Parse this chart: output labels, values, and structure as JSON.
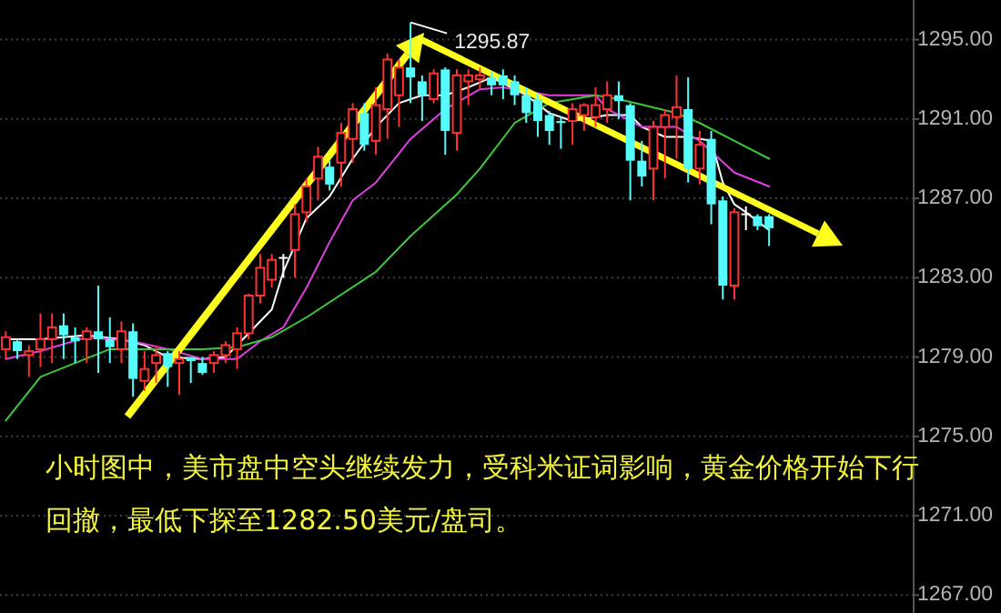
{
  "chart_data": {
    "type": "candlestick",
    "categories": [
      null,
      null,
      null,
      null,
      null,
      null,
      null,
      null,
      null,
      null,
      null,
      null,
      null,
      null,
      null,
      null,
      null,
      null,
      null,
      null,
      null,
      null,
      null,
      null,
      null,
      null,
      null,
      null,
      null,
      null,
      null,
      null,
      null,
      null,
      null,
      null,
      null,
      null,
      null,
      null,
      null,
      null,
      null,
      null,
      null,
      null,
      null,
      null,
      null,
      null,
      null,
      null,
      null,
      null,
      null,
      null,
      null,
      null,
      null,
      null,
      null,
      null,
      null,
      null,
      null,
      null,
      null,
      null,
      null,
      null,
      null,
      null,
      null,
      null,
      null,
      null,
      null,
      null,
      null
    ],
    "ohlc": [
      [
        1279.4,
        1280.3,
        1278.9,
        1280.0
      ],
      [
        1279.8,
        1279.9,
        1278.9,
        1279.3
      ],
      [
        1279.1,
        1279.6,
        1278.0,
        1279.3
      ],
      [
        1279.4,
        1281.2,
        1278.5,
        1279.9
      ],
      [
        1279.9,
        1281.2,
        1278.7,
        1280.5
      ],
      [
        1280.6,
        1281.2,
        1278.9,
        1280.1
      ],
      [
        1280.0,
        1280.5,
        1278.7,
        1279.8
      ],
      [
        1279.9,
        1280.5,
        1278.7,
        1280.3
      ],
      [
        1280.3,
        1282.6,
        1278.2,
        1279.9
      ],
      [
        1279.9,
        1281.0,
        1278.7,
        1279.5
      ],
      [
        1279.4,
        1280.8,
        1278.7,
        1280.3
      ],
      [
        1280.3,
        1280.7,
        1277.0,
        1277.9
      ],
      [
        1277.8,
        1279.3,
        1277.3,
        1278.4
      ],
      [
        1278.7,
        1279.6,
        1277.7,
        1279.1
      ],
      [
        1279.2,
        1279.3,
        1277.5,
        1278.5
      ],
      [
        1278.7,
        1279.3,
        1277.1,
        1278.9
      ],
      [
        1279.0,
        1279.0,
        1277.7,
        1278.8
      ],
      [
        1278.7,
        1279.0,
        1278.1,
        1278.2
      ],
      [
        1278.7,
        1279.3,
        1278.2,
        1279.1
      ],
      [
        1279.1,
        1279.8,
        1278.7,
        1279.6
      ],
      [
        1279.4,
        1280.5,
        1278.4,
        1280.2
      ],
      [
        1280.2,
        1282.2,
        1279.9,
        1282.1
      ],
      [
        1282.1,
        1284.2,
        1281.7,
        1283.5
      ],
      [
        1282.9,
        1284.2,
        1282.5,
        1283.9
      ],
      [
        1284.0,
        1284.2,
        1283.0,
        1284.0
      ],
      [
        1284.4,
        1286.7,
        1283.0,
        1286.2
      ],
      [
        1286.3,
        1288.0,
        1285.8,
        1287.6
      ],
      [
        1288.0,
        1289.6,
        1286.9,
        1289.1
      ],
      [
        1288.6,
        1288.9,
        1287.4,
        1287.7
      ],
      [
        1288.8,
        1290.8,
        1287.6,
        1290.3
      ],
      [
        1290.0,
        1291.8,
        1288.8,
        1291.5
      ],
      [
        1291.3,
        1291.8,
        1289.4,
        1289.7
      ],
      [
        1289.9,
        1292.6,
        1289.2,
        1291.7
      ],
      [
        1291.5,
        1294.3,
        1290.0,
        1294.0
      ],
      [
        1292.2,
        1294.0,
        1290.6,
        1293.6
      ],
      [
        1293.6,
        1295.87,
        1291.8,
        1293.1
      ],
      [
        1292.9,
        1293.2,
        1290.9,
        1292.2
      ],
      [
        1292.0,
        1293.5,
        1291.8,
        1293.3
      ],
      [
        1293.5,
        1293.6,
        1289.2,
        1290.4
      ],
      [
        1290.3,
        1293.5,
        1289.4,
        1293.2
      ],
      [
        1292.9,
        1293.5,
        1291.7,
        1293.2
      ],
      [
        1293.0,
        1293.6,
        1292.5,
        1293.2
      ],
      [
        1293.1,
        1293.4,
        1292.2,
        1292.7
      ],
      [
        1293.2,
        1293.5,
        1292.0,
        1292.7
      ],
      [
        1292.9,
        1293.2,
        1291.7,
        1292.2
      ],
      [
        1292.2,
        1292.6,
        1290.8,
        1291.3
      ],
      [
        1292.0,
        1292.3,
        1290.1,
        1290.9
      ],
      [
        1291.2,
        1291.4,
        1289.7,
        1290.4
      ],
      [
        1290.9,
        1291.1,
        1289.5,
        1290.8
      ],
      [
        1290.9,
        1291.8,
        1289.7,
        1291.5
      ],
      [
        1291.2,
        1291.8,
        1290.4,
        1291.7
      ],
      [
        1291.1,
        1292.6,
        1290.6,
        1291.7
      ],
      [
        1291.5,
        1292.9,
        1290.8,
        1292.2
      ],
      [
        1292.2,
        1292.9,
        1291.0,
        1291.9
      ],
      [
        1291.7,
        1291.8,
        1286.9,
        1288.9
      ],
      [
        1288.9,
        1289.9,
        1287.6,
        1288.1
      ],
      [
        1288.5,
        1290.9,
        1286.9,
        1290.6
      ],
      [
        1290.6,
        1291.5,
        1288.0,
        1291.2
      ],
      [
        1291.1,
        1293.2,
        1289.0,
        1291.6
      ],
      [
        1291.5,
        1293.1,
        1287.8,
        1288.5
      ],
      [
        1288.5,
        1290.4,
        1287.7,
        1289.7
      ],
      [
        1290.0,
        1290.4,
        1285.7,
        1286.7
      ],
      [
        1286.9,
        1287.1,
        1281.9,
        1282.6
      ],
      [
        1282.6,
        1286.5,
        1281.9,
        1286.3
      ],
      [
        1286.2,
        1286.6,
        1285.4,
        1286.2
      ],
      [
        1286.1,
        1286.2,
        1285.4,
        1285.6
      ],
      [
        1286.1,
        1286.2,
        1284.6,
        1285.5
      ],
      null,
      null,
      null,
      null,
      null,
      null,
      null,
      null,
      null,
      null,
      null,
      null
    ],
    "colors": [
      "#ff3232",
      "#54fcfc",
      "#ff3232",
      "#ff3232",
      "#ff3232",
      "#54fcfc",
      "#54fcfc",
      "#ff3232",
      "#54fcfc",
      "#54fcfc",
      "#ff3232",
      "#54fcfc",
      "#ff3232",
      "#ff3232",
      "#54fcfc",
      "#ff3232",
      "#54fcfc",
      "#54fcfc",
      "#ff3232",
      "#ff3232",
      "#ff3232",
      "#ff3232",
      "#ff3232",
      "#ff3232",
      "#ffffff",
      "#ff3232",
      "#ff3232",
      "#ff3232",
      "#54fcfc",
      "#ff3232",
      "#ff3232",
      "#54fcfc",
      "#ff3232",
      "#ff3232",
      "#ff3232",
      "#54fcfc",
      "#54fcfc",
      "#ff3232",
      "#54fcfc",
      "#ff3232",
      "#ff3232",
      "#ff3232",
      "#54fcfc",
      "#54fcfc",
      "#54fcfc",
      "#54fcfc",
      "#54fcfc",
      "#54fcfc",
      "#54fcfc",
      "#ff3232",
      "#ff3232",
      "#ff3232",
      "#ff3232",
      "#54fcfc",
      "#54fcfc",
      "#54fcfc",
      "#ff3232",
      "#ff3232",
      "#ff3232",
      "#54fcfc",
      "#ff3232",
      "#54fcfc",
      "#54fcfc",
      "#ff3232",
      "#ffffff",
      "#54fcfc",
      "#54fcfc",
      null,
      null,
      null,
      null,
      null,
      null,
      null,
      null,
      null,
      null,
      null,
      null
    ],
    "series": [
      {
        "type": "line",
        "color": "#ffffff",
        "values": [
          1279.9,
          null,
          null,
          1279.9,
          null,
          null,
          null,
          1280.1,
          null,
          null,
          1279.9,
          null,
          1279.6,
          null,
          1279.0,
          null,
          null,
          1278.9,
          null,
          1279.0,
          1279.6,
          1280.2,
          null,
          1281.4,
          1283.3,
          null,
          1286.0,
          null,
          1287.1,
          null,
          1289.0,
          null,
          1290.6,
          null,
          1291.8,
          null,
          1292.2,
          null,
          1292.2,
          null,
          1292.6,
          null,
          1293.1,
          null,
          null,
          1292.2,
          null,
          1291.3,
          null,
          1290.9,
          null,
          1291.1,
          1291.2,
          null,
          1291.2,
          1290.6,
          null,
          1290.1,
          null,
          1290.1,
          null,
          1289.9,
          1287.8,
          1286.7,
          1286.3,
          null,
          1285.4,
          null,
          null,
          null,
          null,
          null,
          null,
          null,
          null,
          null,
          null,
          null,
          null
        ]
      },
      {
        "type": "line",
        "color": "#e040e0",
        "values": [
          1278.9,
          null,
          null,
          1279.3,
          null,
          null,
          null,
          1280.0,
          null,
          null,
          null,
          1279.8,
          null,
          null,
          1279.4,
          null,
          null,
          1278.9,
          null,
          null,
          1278.9,
          null,
          1279.8,
          null,
          1280.5,
          null,
          1282.5,
          null,
          1284.8,
          null,
          1286.9,
          null,
          1287.8,
          null,
          null,
          1290.0,
          null,
          null,
          1291.5,
          null,
          null,
          1292.5,
          null,
          1292.6,
          null,
          null,
          null,
          1292.2,
          null,
          null,
          null,
          1292.2,
          1291.5,
          null,
          null,
          1290.6,
          null,
          null,
          1290.6,
          null,
          1289.9,
          null,
          null,
          1288.3,
          null,
          null,
          1287.6,
          null,
          null,
          null,
          null,
          null,
          null,
          null,
          null,
          null,
          null,
          null,
          null
        ]
      },
      {
        "type": "line",
        "color": "#3cc83c",
        "values": [
          1275.8,
          null,
          null,
          1278.0,
          null,
          null,
          1278.7,
          null,
          null,
          1279.4,
          null,
          null,
          null,
          1279.4,
          null,
          null,
          null,
          1279.4,
          null,
          null,
          1279.5,
          null,
          null,
          1280.0,
          null,
          null,
          1281.0,
          null,
          null,
          null,
          null,
          null,
          1283.3,
          null,
          null,
          1285.1,
          null,
          null,
          null,
          1287.2,
          null,
          1288.5,
          null,
          null,
          1290.8,
          null,
          null,
          1291.8,
          null,
          null,
          null,
          1292.2,
          null,
          1292.0,
          null,
          null,
          null,
          null,
          1291.3,
          null,
          1290.8,
          null,
          null,
          1289.9,
          null,
          null,
          1289.0,
          null,
          null,
          null,
          null,
          null,
          null,
          null,
          null,
          null,
          null,
          null,
          null
        ]
      }
    ],
    "ylim": [
      1266.1,
      1297.0
    ],
    "yticks": [
      {
        "value": 1267,
        "label": "1267.00"
      },
      {
        "value": 1271,
        "label": "1271.00"
      },
      {
        "value": 1275,
        "label": "1275.00"
      },
      {
        "value": 1279,
        "label": "1279.00"
      },
      {
        "value": 1283,
        "label": "1283.00"
      },
      {
        "value": 1287,
        "label": "1287.00"
      },
      {
        "value": 1291,
        "label": "1291.00"
      },
      {
        "value": 1295,
        "label": "1295.00"
      }
    ],
    "grid": "y",
    "tick_labels": "y",
    "annotations": [
      "1295.87",
      "小时图中，美市盘中空头继续发力，受科米证词影响，黄金价格开始下行回撤，最低下探至1282.50美元/盘司。"
    ]
  }
}
